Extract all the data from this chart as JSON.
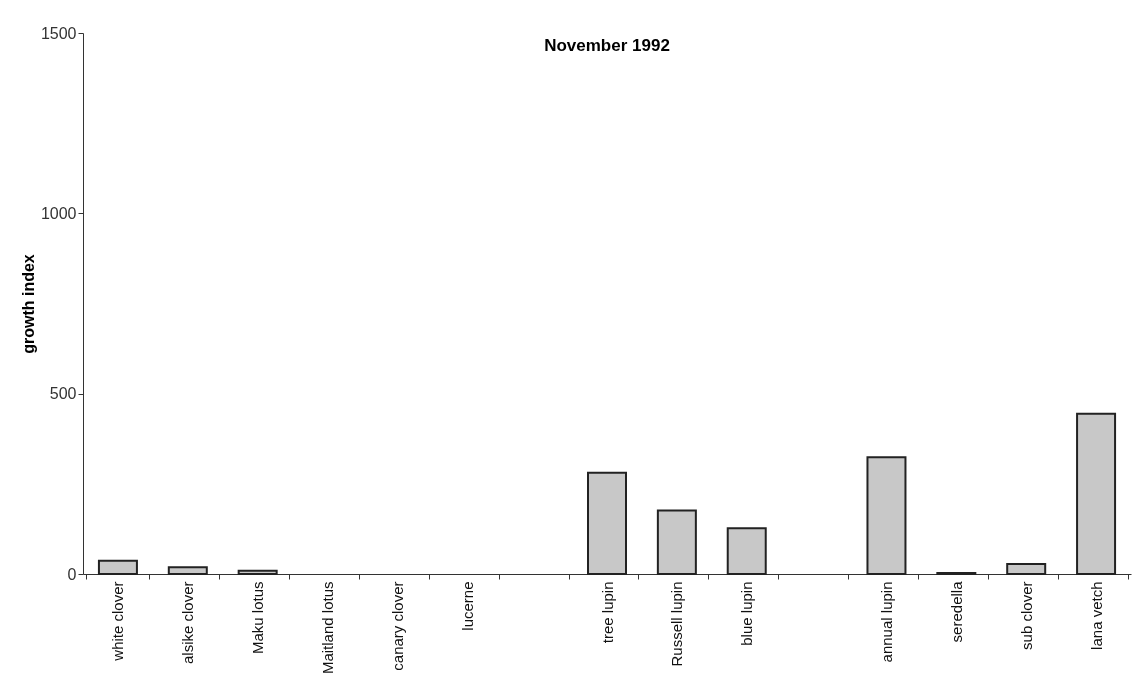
{
  "chart_data": {
    "type": "bar",
    "title": "November 1992",
    "ylabel": "growth index",
    "categories": [
      "white clover",
      "alsike clover",
      "Maku lotus",
      "Maitland lotus",
      "canary clover",
      "lucerne",
      null,
      "tree lupin",
      "Russell lupin",
      "blue lupin",
      null,
      "annual lupin",
      "seredella",
      "sub clover",
      "lana vetch"
    ],
    "values": [
      37,
      19,
      9,
      0,
      0,
      0,
      null,
      281,
      176,
      127,
      null,
      324,
      3,
      28,
      444
    ],
    "color": "#c8c8c8",
    "ylim": [
      0,
      1500
    ],
    "yticks": [
      0,
      500,
      1000,
      1500
    ],
    "grid": false
  }
}
